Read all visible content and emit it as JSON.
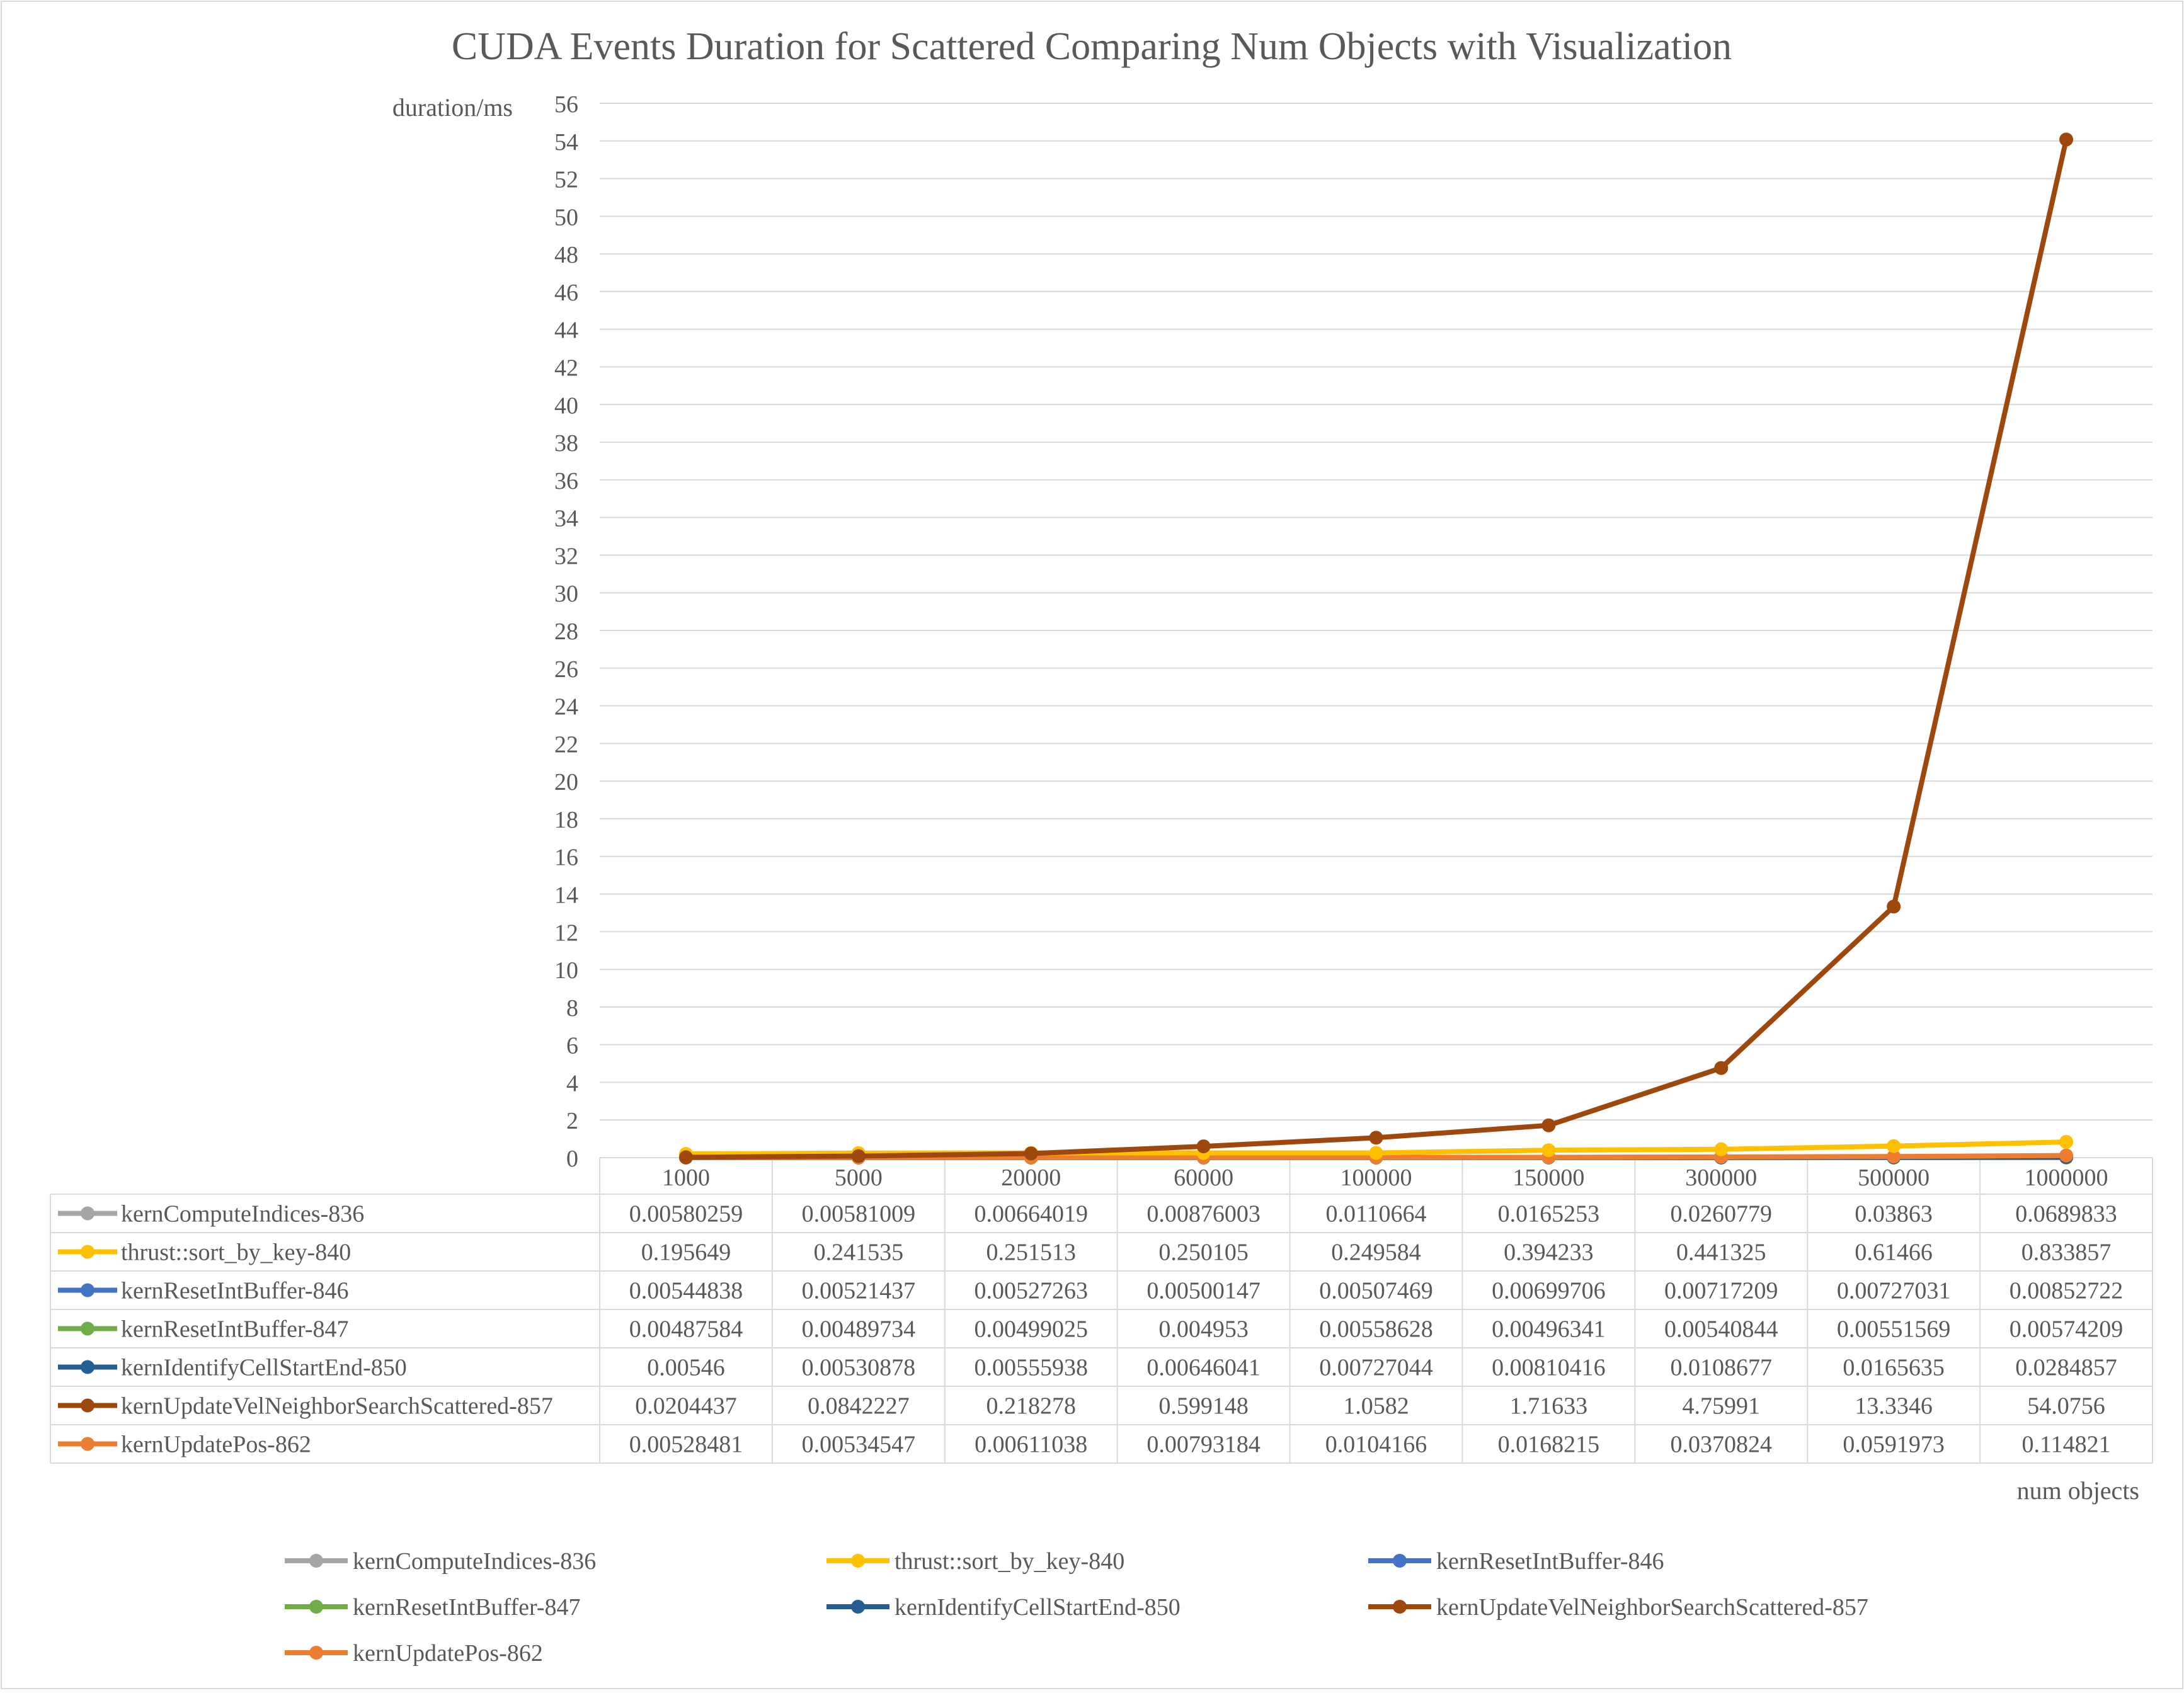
{
  "chart_data": {
    "type": "line",
    "title": "CUDA Events Duration for Scattered Comparing Num Objects with Visualization",
    "xlabel": "num objects",
    "ylabel": "duration/ms",
    "ylim": [
      0,
      56
    ],
    "ytick_step": 2,
    "grid": true,
    "legend_placement": "bottom",
    "has_data_table": true,
    "categories": [
      "1000",
      "5000",
      "20000",
      "60000",
      "100000",
      "150000",
      "300000",
      "500000",
      "1000000"
    ],
    "series": [
      {
        "name": "kernComputeIndices-836",
        "color": "#a5a5a5",
        "labels": [
          "0.00580259",
          "0.00581009",
          "0.00664019",
          "0.00876003",
          "0.0110664",
          "0.0165253",
          "0.0260779",
          "0.03863",
          "0.0689833"
        ],
        "values": [
          0.00580259,
          0.00581009,
          0.00664019,
          0.00876003,
          0.0110664,
          0.0165253,
          0.0260779,
          0.03863,
          0.0689833
        ]
      },
      {
        "name": "thrust::sort_by_key-840",
        "color": "#ffc000",
        "labels": [
          "0.195649",
          "0.241535",
          "0.251513",
          "0.250105",
          "0.249584",
          "0.394233",
          "0.441325",
          "0.61466",
          "0.833857"
        ],
        "values": [
          0.195649,
          0.241535,
          0.251513,
          0.250105,
          0.249584,
          0.394233,
          0.441325,
          0.61466,
          0.833857
        ]
      },
      {
        "name": "kernResetIntBuffer-846",
        "color": "#4472c4",
        "labels": [
          "0.00544838",
          "0.00521437",
          "0.00527263",
          "0.00500147",
          "0.00507469",
          "0.00699706",
          "0.00717209",
          "0.00727031",
          "0.00852722"
        ],
        "values": [
          0.00544838,
          0.00521437,
          0.00527263,
          0.00500147,
          0.00507469,
          0.00699706,
          0.00717209,
          0.00727031,
          0.00852722
        ]
      },
      {
        "name": "kernResetIntBuffer-847",
        "color": "#70ad47",
        "labels": [
          "0.00487584",
          "0.00489734",
          "0.00499025",
          "0.004953",
          "0.00558628",
          "0.00496341",
          "0.00540844",
          "0.00551569",
          "0.00574209"
        ],
        "values": [
          0.00487584,
          0.00489734,
          0.00499025,
          0.004953,
          0.00558628,
          0.00496341,
          0.00540844,
          0.00551569,
          0.00574209
        ]
      },
      {
        "name": "kernIdentifyCellStartEnd-850",
        "color": "#255e91",
        "labels": [
          "0.00546",
          "0.00530878",
          "0.00555938",
          "0.00646041",
          "0.00727044",
          "0.00810416",
          "0.0108677",
          "0.0165635",
          "0.0284857"
        ],
        "values": [
          0.00546,
          0.00530878,
          0.00555938,
          0.00646041,
          0.00727044,
          0.00810416,
          0.0108677,
          0.0165635,
          0.0284857
        ]
      },
      {
        "name": "kernUpdateVelNeighborSearchScattered-857",
        "color": "#9e480e",
        "labels": [
          "0.0204437",
          "0.0842227",
          "0.218278",
          "0.599148",
          "1.0582",
          "1.71633",
          "4.75991",
          "13.3346",
          "54.0756"
        ],
        "values": [
          0.0204437,
          0.0842227,
          0.218278,
          0.599148,
          1.0582,
          1.71633,
          4.75991,
          13.3346,
          54.0756
        ]
      },
      {
        "name": "kernUpdatePos-862",
        "color": "#ed7d31",
        "labels": [
          "0.00528481",
          "0.00534547",
          "0.00611038",
          "0.00793184",
          "0.0104166",
          "0.0168215",
          "0.0370824",
          "0.0591973",
          "0.114821"
        ],
        "values": [
          0.00528481,
          0.00534547,
          0.00611038,
          0.00793184,
          0.0104166,
          0.0168215,
          0.0370824,
          0.0591973,
          0.114821
        ]
      }
    ]
  }
}
